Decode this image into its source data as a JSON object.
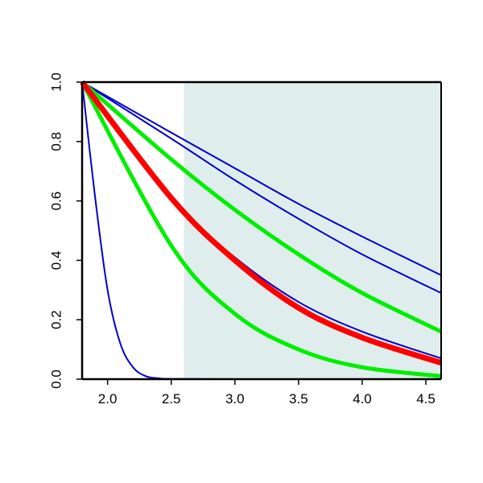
{
  "chart_data": {
    "type": "line",
    "title": "",
    "xlabel": "",
    "ylabel": "",
    "xlim": [
      1.8,
      4.62
    ],
    "ylim": [
      0.0,
      1.0
    ],
    "x_ticks": [
      2.0,
      2.5,
      3.0,
      3.5,
      4.0,
      4.5
    ],
    "x_tick_labels": [
      "2.0",
      "2.5",
      "3.0",
      "3.5",
      "4.0",
      "4.5"
    ],
    "y_ticks": [
      0.0,
      0.2,
      0.4,
      0.6,
      0.8,
      1.0
    ],
    "y_tick_labels": [
      "0.0",
      "0.2",
      "0.4",
      "0.6",
      "0.8",
      "1.0"
    ],
    "grid": false,
    "shaded_region": {
      "x_start": 2.6,
      "x_end": 4.62,
      "color": "#dfeeed"
    },
    "series": [
      {
        "color": "#0000cc",
        "style": "thin",
        "x": [
          1.8,
          1.9,
          2.0,
          2.1,
          2.2,
          2.3,
          2.4,
          2.5,
          3.0,
          3.5,
          4.0,
          4.62
        ],
        "values": [
          1.0,
          0.62,
          0.3,
          0.12,
          0.04,
          0.01,
          0.003,
          0.001,
          0.0,
          0.0,
          0.0,
          0.0
        ]
      },
      {
        "color": "#0000cc",
        "style": "thin",
        "x": [
          1.8,
          2.5,
          3.0,
          3.5,
          4.0,
          4.62
        ],
        "values": [
          1.0,
          0.61,
          0.41,
          0.26,
          0.16,
          0.07
        ]
      },
      {
        "color": "#0000cc",
        "style": "thin",
        "x": [
          1.8,
          2.5,
          3.0,
          3.5,
          4.0,
          4.62
        ],
        "values": [
          1.0,
          0.81,
          0.67,
          0.54,
          0.42,
          0.29
        ]
      },
      {
        "color": "#0000cc",
        "style": "thin",
        "x": [
          1.8,
          2.5,
          3.0,
          3.5,
          4.0,
          4.62
        ],
        "values": [
          1.0,
          0.83,
          0.71,
          0.59,
          0.48,
          0.35
        ]
      },
      {
        "color": "#00ee00",
        "style": "thick",
        "x": [
          1.8,
          2.5,
          3.0,
          3.5,
          4.0,
          4.62
        ],
        "values": [
          1.0,
          0.45,
          0.22,
          0.1,
          0.04,
          0.01
        ]
      },
      {
        "color": "#00ee00",
        "style": "thick",
        "x": [
          1.8,
          2.5,
          3.0,
          3.5,
          4.0,
          4.62
        ],
        "values": [
          1.0,
          0.74,
          0.57,
          0.42,
          0.29,
          0.16
        ]
      },
      {
        "color": "#ff0000",
        "style": "thicker",
        "x": [
          1.8,
          2.5,
          3.0,
          3.5,
          4.0,
          4.62
        ],
        "values": [
          1.0,
          0.61,
          0.4,
          0.24,
          0.14,
          0.055
        ]
      }
    ]
  }
}
